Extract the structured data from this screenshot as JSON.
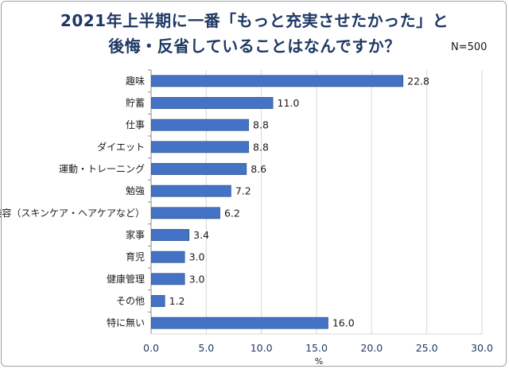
{
  "header": {
    "title_line1": "2021年上半期に一番「もっと充実させたかった」と",
    "title_line2": "後悔・反省していることはなんですか？",
    "sample_note": "N=500"
  },
  "colors": {
    "bar_fill": "#4472c4",
    "bar_stroke": "#2f5597",
    "title": "#1f3864",
    "grid": "#d9d9d9"
  },
  "chart_data": {
    "type": "bar",
    "orientation": "horizontal",
    "title": "2021年上半期に一番「もっと充実させたかった」と後悔・反省していることはなんですか？",
    "xlabel": "%",
    "ylabel": "",
    "xlim": [
      0,
      30
    ],
    "xticks": [
      "0.0",
      "5.0",
      "10.0",
      "15.0",
      "20.0",
      "25.0",
      "30.0"
    ],
    "grid": true,
    "legend": "none",
    "categories": [
      "趣味",
      "貯蓄",
      "仕事",
      "ダイエット",
      "運動・トレーニング",
      "勉強",
      "美容（スキンケア・ヘアケアなど）",
      "家事",
      "育児",
      "健康管理",
      "その他",
      "特に無い"
    ],
    "values": [
      22.8,
      11.0,
      8.8,
      8.8,
      8.6,
      7.2,
      6.2,
      3.4,
      3.0,
      3.0,
      1.2,
      16.0
    ],
    "value_labels": [
      "22.8",
      "11.0",
      "8.8",
      "8.8",
      "8.6",
      "7.2",
      "6.2",
      "3.4",
      "3.0",
      "3.0",
      "1.2",
      "16.0"
    ]
  }
}
